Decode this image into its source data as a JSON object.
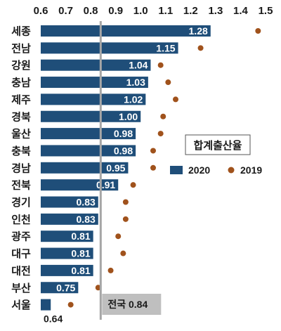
{
  "chart_data": {
    "type": "bar",
    "orientation": "horizontal",
    "xlim": [
      0.6,
      1.5
    ],
    "x_ticks": [
      "0.6",
      "0.7",
      "0.8",
      "0.9",
      "1.0",
      "1.1",
      "1.2",
      "1.3",
      "1.4",
      "1.5"
    ],
    "x_tick_values": [
      0.6,
      0.7,
      0.8,
      0.9,
      1.0,
      1.1,
      1.2,
      1.3,
      1.4,
      1.5
    ],
    "categories": [
      "세종",
      "전남",
      "강원",
      "충남",
      "제주",
      "경북",
      "울산",
      "충북",
      "경남",
      "전북",
      "경기",
      "인천",
      "광주",
      "대구",
      "대전",
      "부산",
      "서울"
    ],
    "series": [
      {
        "name": "2020",
        "kind": "bar",
        "color": "#1f4e79",
        "values": [
          1.28,
          1.15,
          1.04,
          1.03,
          1.02,
          1.0,
          0.98,
          0.98,
          0.95,
          0.91,
          0.83,
          0.83,
          0.81,
          0.81,
          0.81,
          0.75,
          0.64
        ],
        "labels": [
          "1.28",
          "1.15",
          "1.04",
          "1.03",
          "1.02",
          "1.00",
          "0.98",
          "0.98",
          "0.95",
          "0.91",
          "0.83",
          "0.83",
          "0.81",
          "0.81",
          "0.81",
          "0.75",
          "0.64"
        ]
      },
      {
        "name": "2019",
        "kind": "dot",
        "color": "#a0521c",
        "values": [
          1.47,
          1.24,
          1.08,
          1.11,
          1.14,
          1.09,
          1.08,
          1.05,
          1.05,
          0.97,
          0.94,
          0.94,
          0.91,
          0.93,
          0.88,
          0.83,
          0.72
        ]
      }
    ],
    "legend_title": "합계출산율",
    "legend_position": "right",
    "reference_line": {
      "value": 0.84,
      "label": "전국 0.84"
    }
  }
}
